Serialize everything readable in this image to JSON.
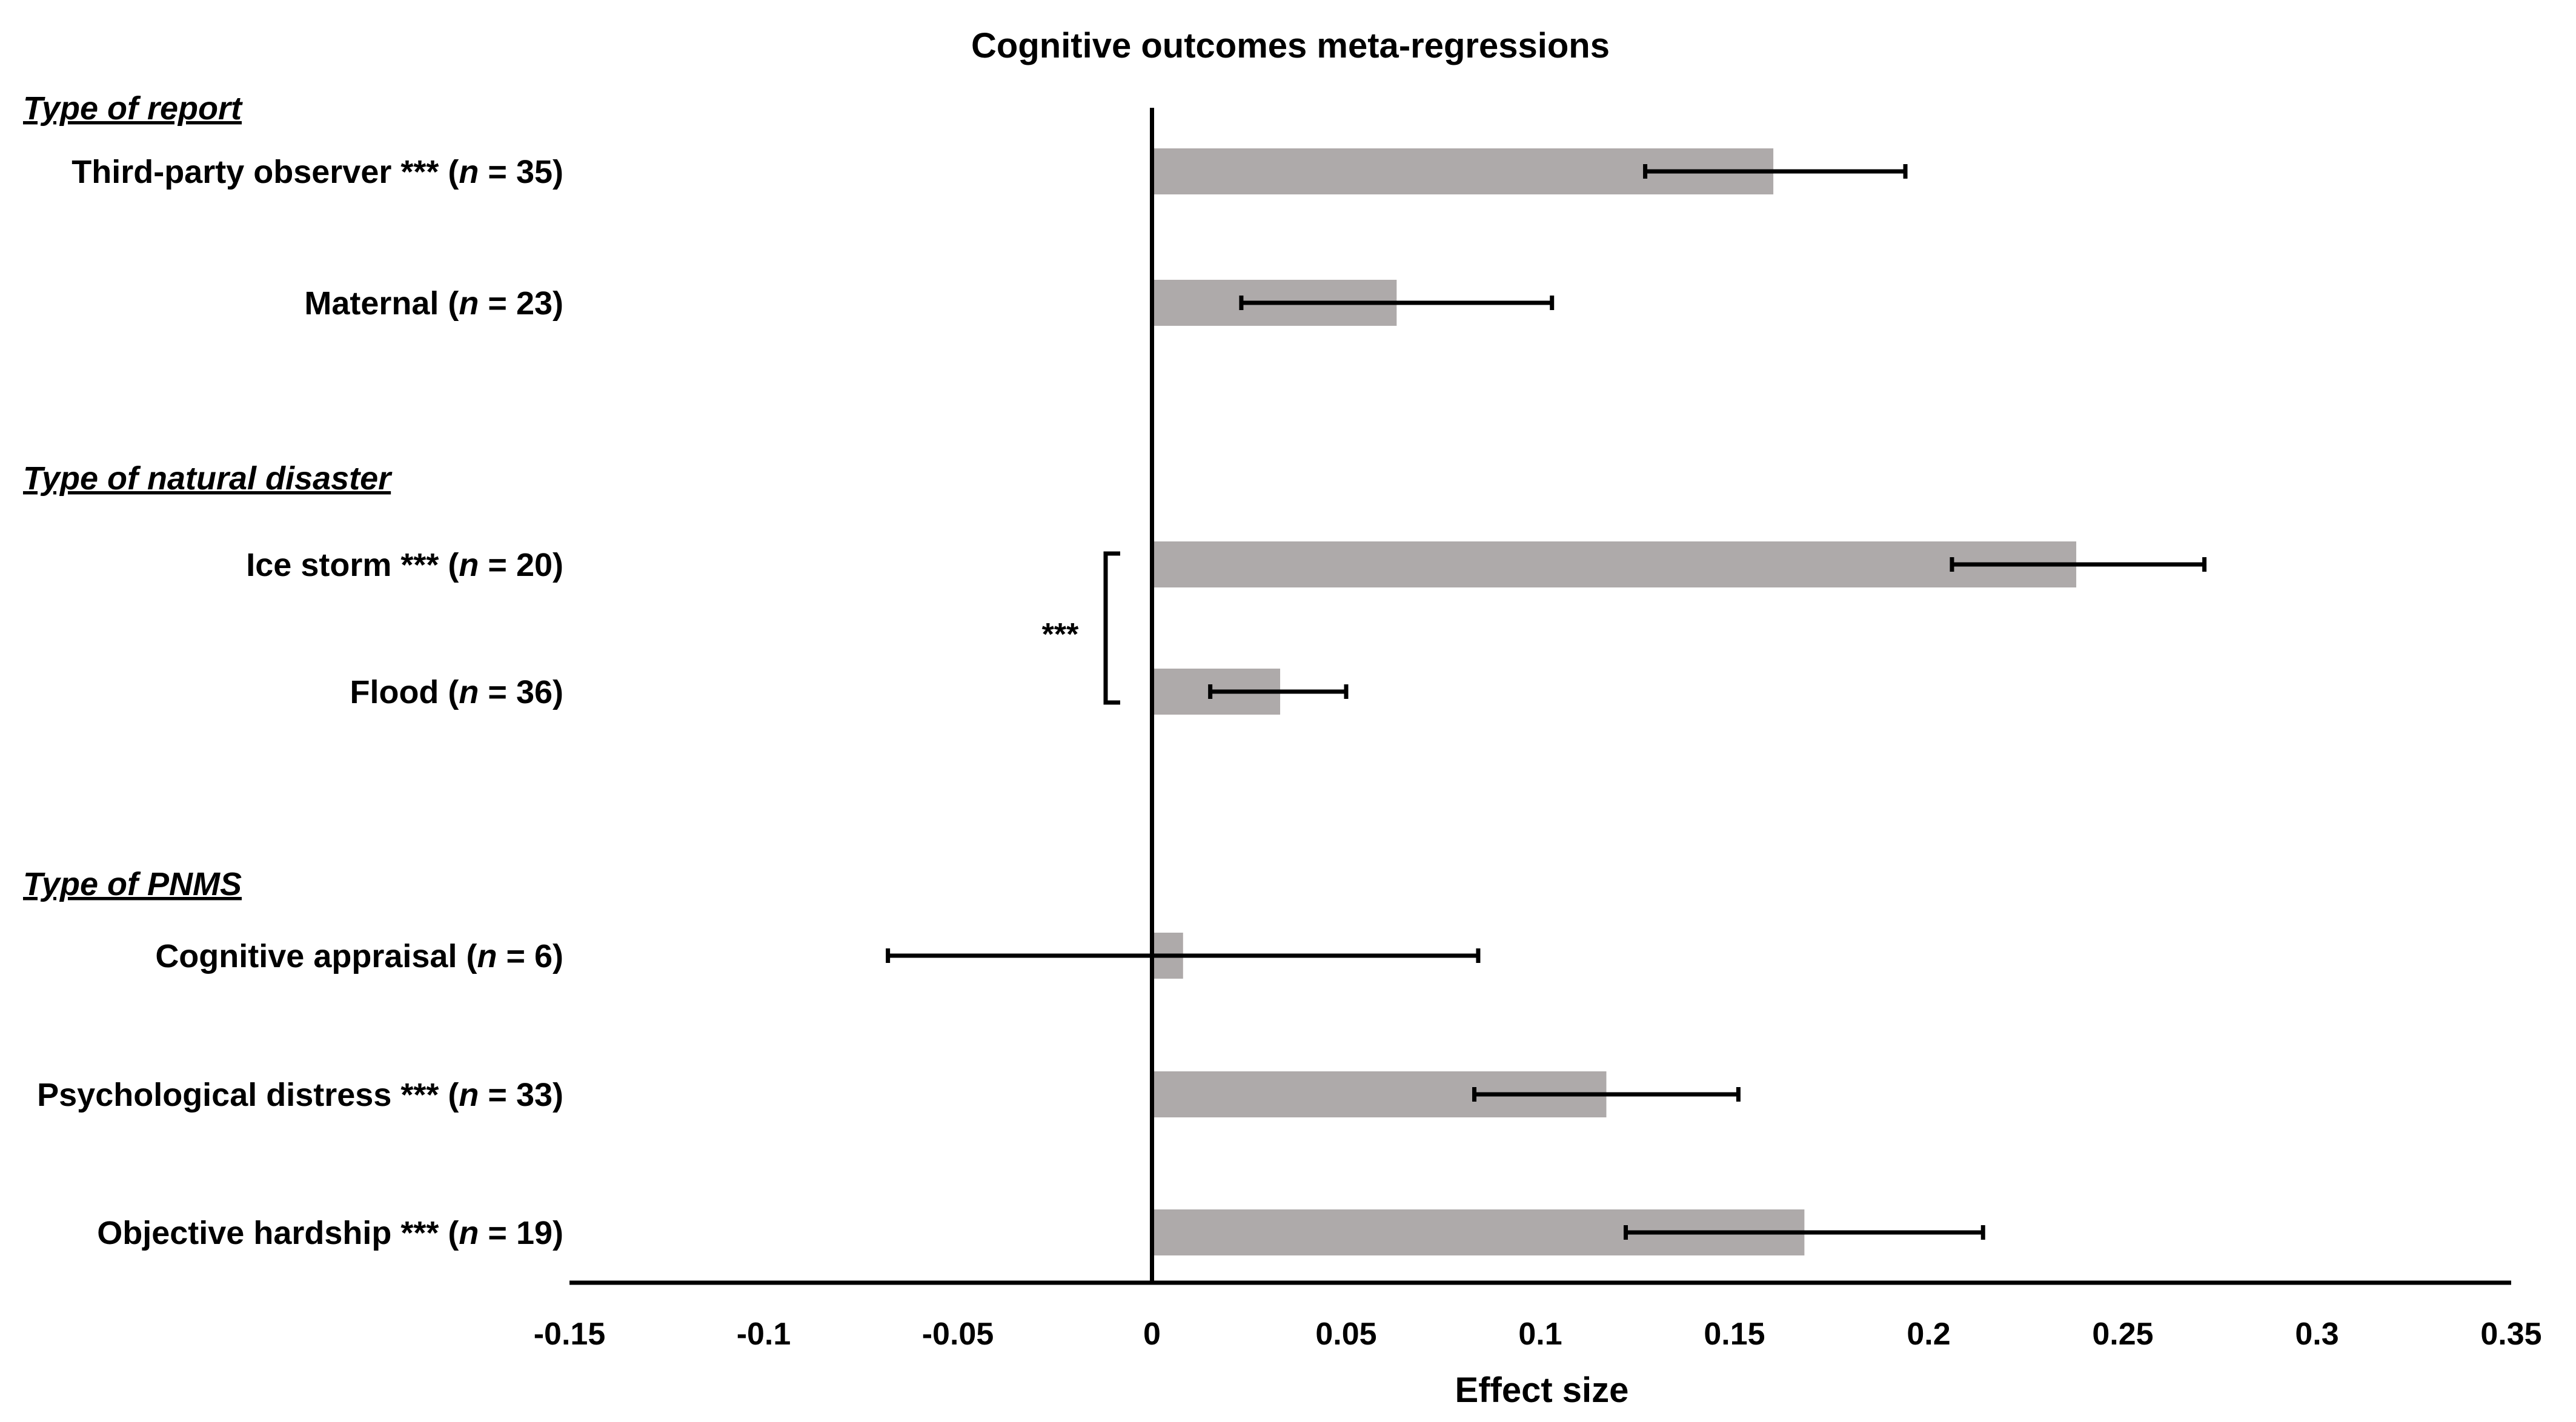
{
  "chart_data": {
    "type": "bar",
    "orientation": "horizontal",
    "title": "Cognitive outcomes meta-regressions",
    "xlabel": "Effect size",
    "xlim": [
      -0.15,
      0.35
    ],
    "xticks": [
      "-0.15",
      "-0.1",
      "-0.05",
      "0",
      "0.05",
      "0.1",
      "0.15",
      "0.2",
      "0.25",
      "0.3",
      "0.35"
    ],
    "grid": false,
    "legend": "none",
    "bar_color": "#aeaaaa",
    "errorbar_color": "#000000",
    "groups": [
      {
        "label": "Type of report",
        "items": [
          {
            "name": "Third-party observer",
            "stars": " ***",
            "n": "35",
            "value": 0.16,
            "ci": [
              0.127,
              0.194
            ]
          },
          {
            "name": "Maternal",
            "stars": "",
            "n": "23",
            "value": 0.063,
            "ci": [
              0.023,
              0.103
            ]
          }
        ]
      },
      {
        "label": "Type of natural disaster",
        "items": [
          {
            "name": "Ice storm",
            "stars": " ***",
            "n": "20",
            "value": 0.238,
            "ci": [
              0.206,
              0.271
            ]
          },
          {
            "name": "Flood",
            "stars": "",
            "n": "36",
            "value": 0.033,
            "ci": [
              0.015,
              0.05
            ]
          }
        ],
        "comparison": "***"
      },
      {
        "label": "Type of PNMS",
        "items": [
          {
            "name": "Cognitive appraisal",
            "stars": "",
            "n": "6",
            "value": 0.008,
            "ci": [
              -0.068,
              0.084
            ]
          },
          {
            "name": "Psychological distress",
            "stars": " ***",
            "n": "33",
            "value": 0.117,
            "ci": [
              0.083,
              0.151
            ]
          },
          {
            "name": "Objective hardship",
            "stars": " ***",
            "n": "19",
            "value": 0.168,
            "ci": [
              0.122,
              0.214
            ]
          }
        ]
      }
    ]
  }
}
